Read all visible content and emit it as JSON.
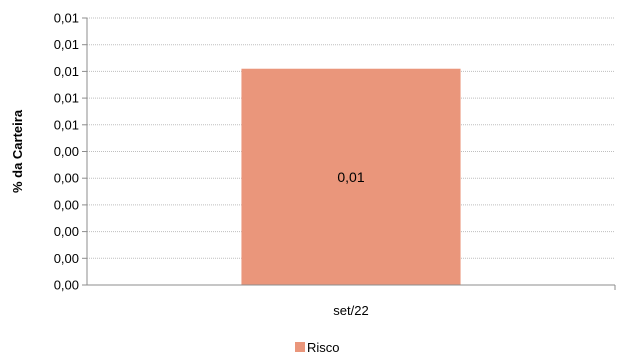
{
  "chart_data": {
    "type": "bar",
    "categories": [
      "set/22"
    ],
    "series": [
      {
        "name": "Risco",
        "values": [
          0.0081
        ],
        "data_labels": [
          "0,01"
        ],
        "color": "#EA967B"
      }
    ],
    "ylabel": "% da Carteira",
    "xlabel": "",
    "ylim": [
      0,
      0.01
    ],
    "y_ticks": [
      0,
      0.001,
      0.002,
      0.003,
      0.004,
      0.005,
      0.006,
      0.007,
      0.008,
      0.009,
      0.01
    ],
    "y_tick_labels": [
      "0,00",
      "0,00",
      "0,00",
      "0,00",
      "0,00",
      "0,00",
      "0,01",
      "0,01",
      "0,01",
      "0,01",
      "0,01"
    ],
    "grid": true,
    "grid_color": "#BFBFBF",
    "legend_position": "bottom",
    "bar_color": "#EA967B"
  }
}
